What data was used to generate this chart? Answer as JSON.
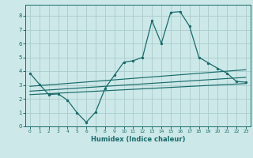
{
  "title": "",
  "xlabel": "Humidex (Indice chaleur)",
  "bg_color": "#cce8e8",
  "grid_color": "#aacccc",
  "line_color": "#1a6b6b",
  "xlim": [
    -0.5,
    23.5
  ],
  "ylim": [
    0,
    8.8
  ],
  "xticks": [
    0,
    1,
    2,
    3,
    4,
    5,
    6,
    7,
    8,
    9,
    10,
    11,
    12,
    13,
    14,
    15,
    16,
    17,
    18,
    19,
    20,
    21,
    22,
    23
  ],
  "yticks": [
    0,
    1,
    2,
    3,
    4,
    5,
    6,
    7,
    8
  ],
  "curve_x": [
    0,
    1,
    2,
    3,
    4,
    5,
    6,
    7,
    8,
    9,
    10,
    11,
    12,
    13,
    14,
    15,
    16,
    17,
    18,
    19,
    20,
    21,
    22,
    23
  ],
  "curve_y": [
    3.85,
    3.05,
    2.3,
    2.35,
    1.9,
    1.0,
    0.3,
    1.05,
    2.75,
    3.7,
    4.65,
    4.75,
    5.0,
    7.65,
    6.0,
    8.25,
    8.3,
    7.25,
    5.0,
    4.6,
    4.2,
    3.85,
    3.25,
    3.2
  ],
  "trend1_x": [
    0,
    23
  ],
  "trend1_y": [
    2.9,
    4.1
  ],
  "trend2_x": [
    0,
    23
  ],
  "trend2_y": [
    2.55,
    3.55
  ],
  "trend3_x": [
    0,
    23
  ],
  "trend3_y": [
    2.3,
    3.1
  ]
}
